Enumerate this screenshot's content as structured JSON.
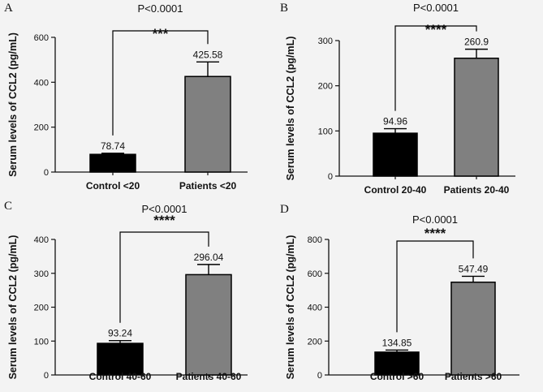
{
  "figure": {
    "bg_color": "#f3f3f3"
  },
  "chart_data": [
    {
      "type": "bar",
      "panel": "A",
      "ylabel": "Serum levels of CCL2 (pg/mL)",
      "categories": [
        "Control <20",
        "Patients <20"
      ],
      "values": [
        78.74,
        425.58
      ],
      "error": [
        5,
        65
      ],
      "value_labels": [
        "78.74",
        "425.58"
      ],
      "colors": [
        "#000000",
        "#808080"
      ],
      "ylim": [
        0,
        600
      ],
      "yticks": [
        0,
        200,
        400,
        600
      ],
      "p_value": "P<0.0001",
      "stars": "***"
    },
    {
      "type": "bar",
      "panel": "B",
      "ylabel": "Serum levels of CCL2 (pg/mL)",
      "categories": [
        "Control 20-40",
        "Patients 20-40"
      ],
      "values": [
        94.96,
        260.9
      ],
      "error": [
        10,
        20
      ],
      "value_labels": [
        "94.96",
        "260.9"
      ],
      "colors": [
        "#000000",
        "#808080"
      ],
      "ylim": [
        0,
        300
      ],
      "yticks": [
        0,
        100,
        200,
        300
      ],
      "p_value": "P<0.0001",
      "stars": "****"
    },
    {
      "type": "bar",
      "panel": "C",
      "ylabel": "Serum levels of CCL2 (pg/mL)",
      "categories": [
        "Control 40-60",
        "Patients 40-60"
      ],
      "values": [
        93.24,
        296.04
      ],
      "error": [
        8,
        30
      ],
      "value_labels": [
        "93.24",
        "296.04"
      ],
      "colors": [
        "#000000",
        "#808080"
      ],
      "ylim": [
        0,
        400
      ],
      "yticks": [
        0,
        100,
        200,
        300,
        400
      ],
      "p_value": "P<0.0001",
      "stars": "****"
    },
    {
      "type": "bar",
      "panel": "D",
      "ylabel": "Serum levels of CCL2 (pg/mL)",
      "categories": [
        "Control >60",
        "Patients >60"
      ],
      "values": [
        134.85,
        547.49
      ],
      "error": [
        12,
        35
      ],
      "value_labels": [
        "134.85",
        "547.49"
      ],
      "colors": [
        "#000000",
        "#808080"
      ],
      "ylim": [
        0,
        800
      ],
      "yticks": [
        0,
        200,
        400,
        600,
        800
      ],
      "p_value": "P<0.0001",
      "stars": "****"
    }
  ]
}
